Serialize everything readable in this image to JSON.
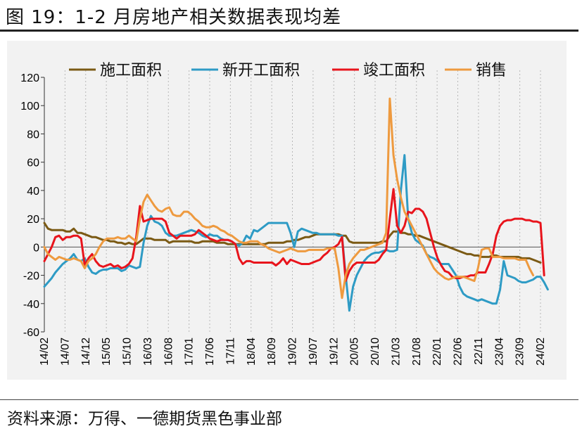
{
  "figure": {
    "title": "图 19：1-2 月房地产相关数据表现均差",
    "source": "资料来源：万得、一德期货黑色事业部"
  },
  "colors": {
    "施工面积": "#7B5A14",
    "新开工面积": "#2E9BC5",
    "竣工面积": "#E8141C",
    "销售": "#EE9A3F"
  },
  "chart_data": {
    "type": "line",
    "ylim": [
      -60,
      120
    ],
    "yticks": [
      120,
      100,
      80,
      60,
      40,
      20,
      0,
      -20,
      -40,
      -60
    ],
    "xlabels": [
      "14/02",
      "14/07",
      "14/12",
      "15/05",
      "15/10",
      "16/03",
      "16/08",
      "17/01",
      "17/06",
      "17/11",
      "18/04",
      "18/09",
      "19/02",
      "19/07",
      "19/12",
      "20/05",
      "20/10",
      "21/03",
      "21/08",
      "22/01",
      "22/06",
      "22/11",
      "23/04",
      "23/09",
      "24/02"
    ],
    "grid": "vertical dotted",
    "legend": "top",
    "series": [
      {
        "name": "施工面积",
        "values": [
          17,
          13,
          12,
          12,
          12,
          12,
          11,
          11,
          13,
          10,
          10,
          9,
          8,
          7,
          7,
          6,
          5,
          5,
          4,
          4,
          3,
          3,
          2,
          3,
          2,
          2,
          4,
          6,
          6,
          6,
          5,
          5,
          5,
          5,
          3,
          4,
          4,
          4,
          4,
          4,
          4,
          3,
          3,
          4,
          4,
          4,
          4,
          3,
          3,
          3,
          2,
          2,
          2,
          2,
          2,
          2,
          2,
          2,
          2,
          2,
          2,
          3,
          3,
          3,
          3,
          3,
          4,
          4,
          5,
          5,
          6,
          7,
          7,
          8,
          9,
          9,
          9,
          9,
          9,
          9,
          9,
          8,
          8,
          4,
          3,
          3,
          3,
          3,
          3,
          3,
          3,
          3,
          4,
          4,
          8,
          11,
          11,
          10,
          10,
          9,
          9,
          8,
          8,
          7,
          6,
          5,
          4,
          3,
          2,
          1,
          0,
          -1,
          -2,
          -3,
          -4,
          -5,
          -5,
          -6,
          -6,
          -7,
          -7,
          -7,
          -6,
          -6,
          -7,
          -7,
          -7,
          -7,
          -7,
          -7,
          -8,
          -8,
          -8,
          -9,
          -10,
          -11
        ]
      },
      {
        "name": "新开工面积",
        "values": [
          -28,
          -25,
          -22,
          -18,
          -15,
          -12,
          -10,
          -8,
          -5,
          -9,
          -10,
          -8,
          -14,
          -18,
          -19,
          -17,
          -16,
          -16,
          -15,
          -15,
          -15,
          -17,
          -16,
          -13,
          -14,
          -15,
          -14,
          3,
          15,
          22,
          18,
          17,
          15,
          10,
          8,
          8,
          8,
          9,
          10,
          11,
          12,
          11,
          10,
          8,
          7,
          9,
          8,
          8,
          6,
          5,
          5,
          4,
          2,
          1,
          3,
          8,
          6,
          12,
          11,
          13,
          15,
          17,
          17,
          17,
          17,
          17,
          17,
          10,
          0,
          11,
          13,
          12,
          11,
          10,
          10,
          9,
          9,
          9,
          9,
          9,
          8,
          8,
          -20,
          -45,
          -28,
          -20,
          -15,
          -10,
          -7,
          -5,
          -4,
          -4,
          -3,
          -2,
          -3,
          -3,
          -2,
          40,
          65,
          20,
          10,
          5,
          3,
          1,
          -5,
          -7,
          -8,
          -10,
          -12,
          -12,
          -12,
          -16,
          -20,
          -28,
          -33,
          -35,
          -36,
          -37,
          -38,
          -37,
          -38,
          -39,
          -40,
          -40,
          -30,
          -10,
          -20,
          -21,
          -22,
          -24,
          -25,
          -25,
          -24,
          -23,
          -21,
          -21,
          -25,
          -30
        ]
      },
      {
        "name": "竣工面积",
        "values": [
          -10,
          -5,
          0,
          7,
          8,
          5,
          7,
          7,
          8,
          8,
          6,
          -13,
          -8,
          -5,
          -10,
          -13,
          -14,
          -13,
          -12,
          -14,
          -13,
          -15,
          -14,
          -12,
          -8,
          7,
          29,
          18,
          19,
          20,
          20,
          20,
          20,
          18,
          10,
          8,
          6,
          8,
          8,
          8,
          8,
          9,
          12,
          10,
          8,
          6,
          5,
          4,
          5,
          5,
          5,
          4,
          2,
          -8,
          -12,
          -10,
          -10,
          -11,
          -11,
          -11,
          -11,
          -11,
          -11,
          -13,
          -11,
          -8,
          -12,
          -9,
          -10,
          -11,
          -12,
          -12,
          -12,
          -11,
          -10,
          -9,
          -6,
          -4,
          -1,
          0,
          2,
          7,
          -24,
          -17,
          -13,
          -11,
          -11,
          -11,
          -11,
          -11,
          -11,
          -9,
          -5,
          -2,
          20,
          41,
          15,
          10,
          15,
          25,
          24,
          27,
          27,
          25,
          20,
          10,
          0,
          -8,
          -13,
          -17,
          -18,
          -21,
          -22,
          -22,
          -21,
          -21,
          -20,
          -20,
          -18,
          -18,
          -18,
          -12,
          -5,
          8,
          15,
          18,
          19,
          19,
          20,
          20,
          20,
          19,
          19,
          18,
          18,
          17,
          -20
        ]
      },
      {
        "name": "销售",
        "values": [
          0,
          -5,
          -7,
          -9,
          -7,
          -8,
          -9,
          -9,
          -8,
          -9,
          -10,
          -15,
          -10,
          -8,
          -5,
          0,
          4,
          6,
          6,
          6,
          7,
          6,
          6,
          8,
          6,
          4,
          20,
          32,
          37,
          33,
          29,
          26,
          25,
          27,
          28,
          23,
          22,
          22,
          25,
          25,
          23,
          20,
          18,
          15,
          14,
          14,
          15,
          14,
          12,
          11,
          9,
          8,
          6,
          4,
          3,
          3,
          4,
          4,
          4,
          2,
          1,
          -1,
          -2,
          -3,
          -4,
          -3,
          -2,
          -1,
          -2,
          -3,
          -3,
          -3,
          -2,
          -2,
          -2,
          -2,
          -2,
          -1,
          -1,
          -1,
          -15,
          -36,
          -20,
          -12,
          -8,
          -5,
          -2,
          -2,
          -1,
          0,
          1,
          2,
          3,
          10,
          105,
          65,
          48,
          35,
          25,
          20,
          15,
          10,
          5,
          0,
          -5,
          -10,
          -15,
          -18,
          -20,
          -22,
          -23,
          -22,
          -21,
          -21,
          -21,
          -22,
          -23,
          -24,
          -15,
          -2,
          -1,
          -1,
          -7,
          -7,
          -7,
          -8,
          -8,
          -8,
          -8,
          -9,
          -9,
          -9,
          -15,
          -20
        ]
      }
    ]
  }
}
